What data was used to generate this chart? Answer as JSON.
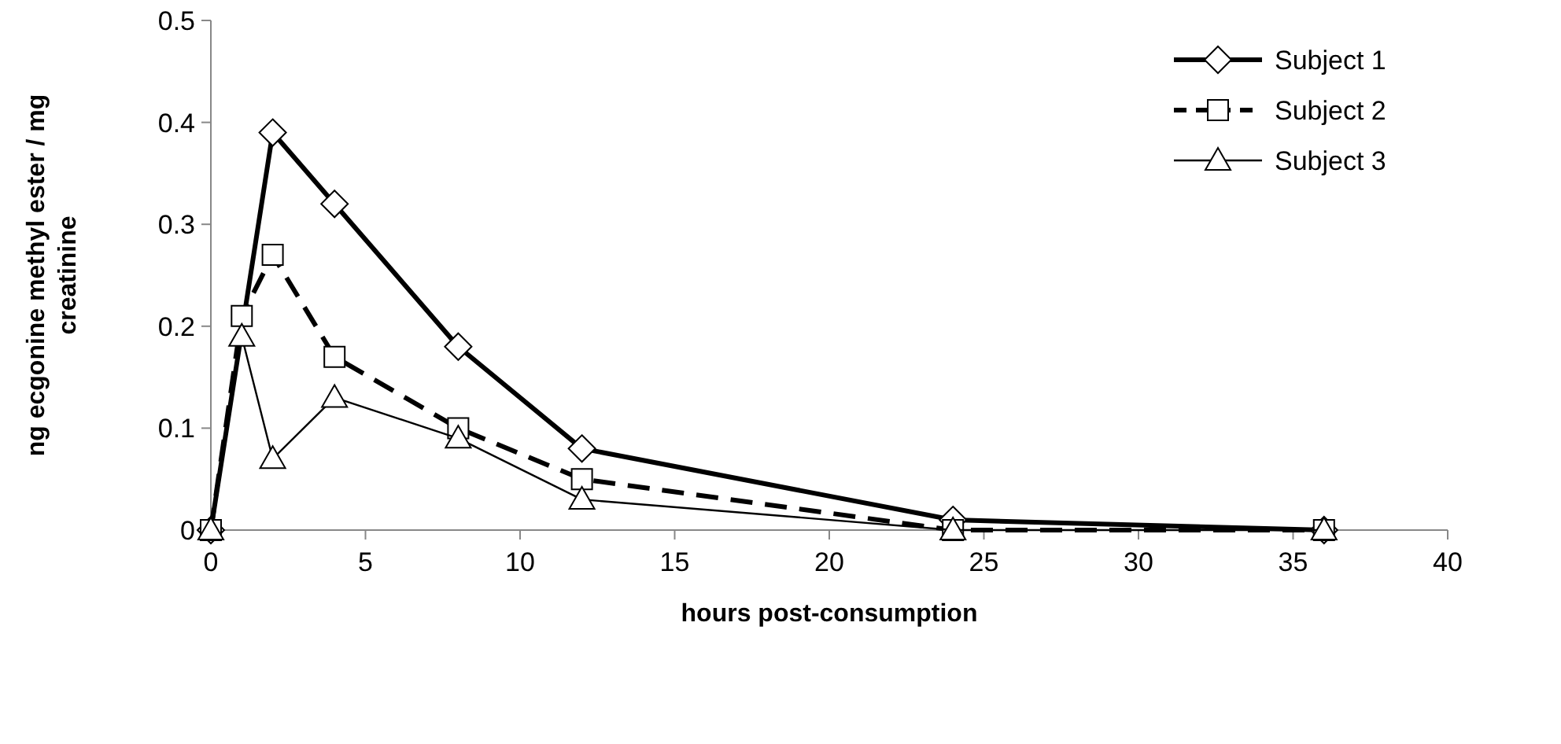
{
  "chart_data": {
    "type": "line",
    "xlabel": "hours post-consumption",
    "ylabel": "ng ecgonine methyl ester / mg creatinine",
    "x": [
      0,
      1,
      2,
      4,
      8,
      12,
      24,
      36
    ],
    "series": [
      {
        "name": "Subject 1",
        "color": "#000000",
        "marker": "diamond",
        "line_style": "solid",
        "x": [
          0,
          2,
          4,
          8,
          12,
          24,
          36
        ],
        "values": [
          0,
          0.39,
          0.32,
          0.18,
          0.08,
          0.01,
          0
        ]
      },
      {
        "name": "Subject 2",
        "color": "#000000",
        "marker": "square",
        "line_style": "dashed",
        "values": [
          0,
          0.21,
          0.27,
          0.17,
          0.1,
          0.05,
          0,
          0
        ]
      },
      {
        "name": "Subject 3",
        "color": "#000000",
        "marker": "triangle",
        "line_style": "solid",
        "values": [
          0,
          0.19,
          0.07,
          0.13,
          0.09,
          0.03,
          0,
          0
        ]
      }
    ],
    "xlim": [
      0,
      40
    ],
    "xticks": [
      0,
      5,
      10,
      15,
      20,
      25,
      30,
      35,
      40
    ],
    "ylim": [
      0,
      0.5
    ],
    "yticks": [
      0,
      0.1,
      0.2,
      0.3,
      0.4,
      0.5
    ],
    "grid": false,
    "legend": "top right"
  }
}
